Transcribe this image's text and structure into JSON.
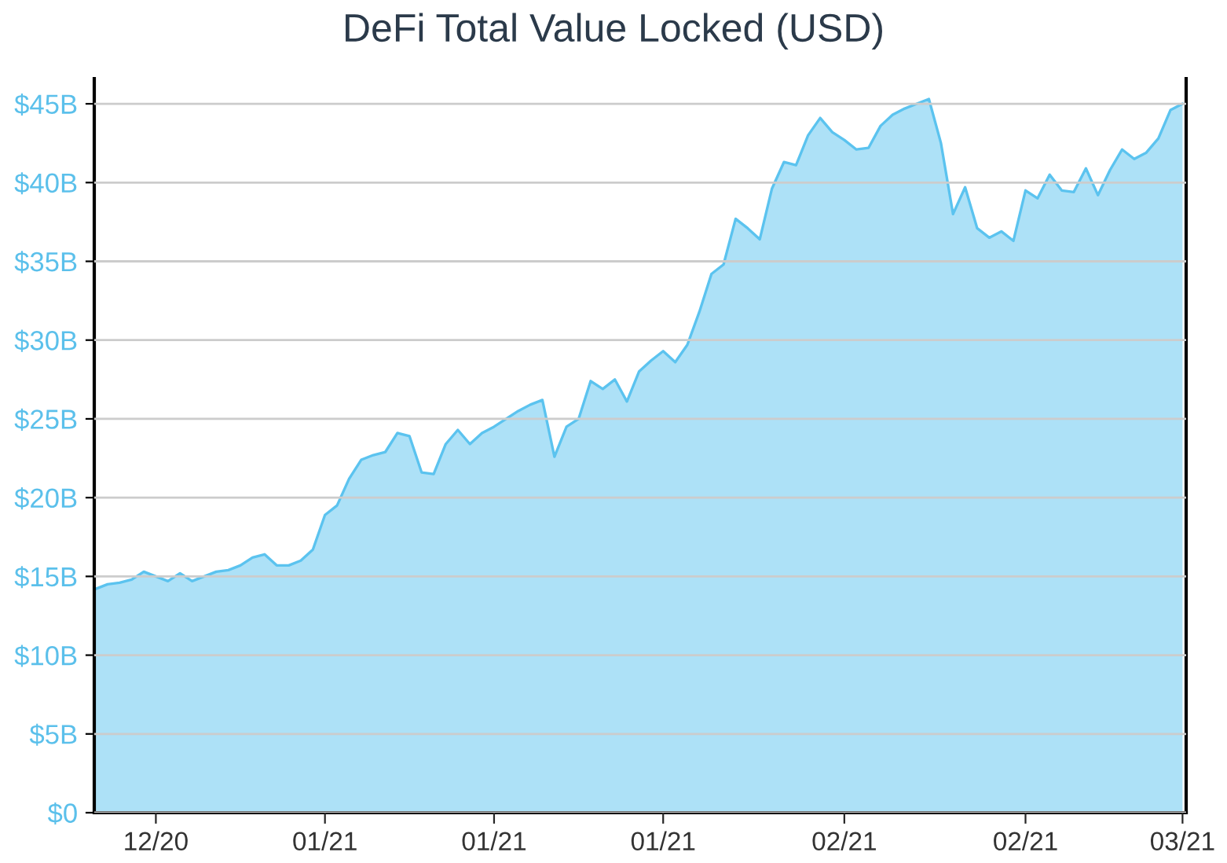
{
  "chart_data": {
    "type": "area",
    "title": "DeFi Total Value Locked (USD)",
    "categories": [
      null,
      null,
      null,
      null,
      null,
      "12/20",
      null,
      null,
      null,
      null,
      null,
      null,
      null,
      null,
      null,
      null,
      null,
      null,
      null,
      "01/21",
      null,
      null,
      null,
      null,
      null,
      null,
      null,
      null,
      null,
      null,
      null,
      null,
      null,
      "01/21",
      null,
      null,
      null,
      null,
      null,
      null,
      null,
      null,
      null,
      null,
      null,
      null,
      null,
      "01/21",
      null,
      null,
      null,
      null,
      null,
      null,
      null,
      null,
      null,
      null,
      null,
      null,
      null,
      null,
      "02/21",
      null,
      null,
      null,
      null,
      null,
      null,
      null,
      null,
      null,
      null,
      null,
      null,
      null,
      null,
      "02/21",
      null,
      null,
      null,
      null,
      null,
      null,
      null,
      null,
      null,
      null,
      null,
      null,
      "03/21"
    ],
    "series": [
      {
        "color": "#5bc3ef",
        "values": [
          14.2,
          14.5,
          14.6,
          14.8,
          15.3,
          15.0,
          14.7,
          15.2,
          14.7,
          15.0,
          15.3,
          15.4,
          15.7,
          16.2,
          16.4,
          15.7,
          15.7,
          16.0,
          16.7,
          18.9,
          19.5,
          21.2,
          22.4,
          22.7,
          22.9,
          24.1,
          23.9,
          21.6,
          21.5,
          23.4,
          24.3,
          23.4,
          24.1,
          24.5,
          25.0,
          25.5,
          25.9,
          26.2,
          22.6,
          24.5,
          25.0,
          27.4,
          26.9,
          27.5,
          26.1,
          28.0,
          28.7,
          29.3,
          28.6,
          29.7,
          31.8,
          34.2,
          34.8,
          37.7,
          37.1,
          36.4,
          39.6,
          41.3,
          41.1,
          43.0,
          44.1,
          43.2,
          42.7,
          42.1,
          42.2,
          43.6,
          44.3,
          44.7,
          45.0,
          45.3,
          42.5,
          38.0,
          39.7,
          37.1,
          36.5,
          36.9,
          36.3,
          39.5,
          39.0,
          40.5,
          39.5,
          39.4,
          40.9,
          39.2,
          40.8,
          42.1,
          41.5,
          41.9,
          42.8,
          44.6,
          45.0
        ]
      }
    ],
    "ylim": [
      0,
      46.6
    ],
    "yticks": [
      {
        "value": 0,
        "label": "$0"
      },
      {
        "value": 5,
        "label": "$5B"
      },
      {
        "value": 10,
        "label": "$10B"
      },
      {
        "value": 15,
        "label": "$15B"
      },
      {
        "value": 20,
        "label": "$20B"
      },
      {
        "value": 25,
        "label": "$25B"
      },
      {
        "value": 30,
        "label": "$30B"
      },
      {
        "value": 35,
        "label": "$35B"
      },
      {
        "value": 40,
        "label": "$40B"
      },
      {
        "value": 45,
        "label": "$45B"
      }
    ],
    "grid": "y"
  }
}
